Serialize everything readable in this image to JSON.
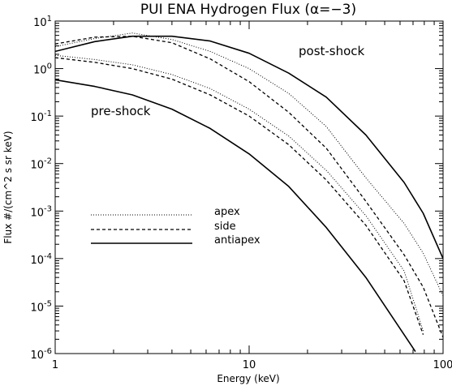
{
  "chart_data": {
    "type": "line",
    "title": "PUI ENA Hydrogen Flux (α=−3)",
    "xlabel": "Energy (keV)",
    "ylabel": "Flux #/(cm^2 s sr keV)",
    "xscale": "log",
    "yscale": "log",
    "xlim": [
      1,
      100
    ],
    "ylim": [
      1e-06,
      10
    ],
    "xticks": [
      {
        "value": 1,
        "label": "1"
      },
      {
        "value": 10,
        "label": "10"
      },
      {
        "value": 100,
        "label": "100"
      }
    ],
    "yticks": [
      {
        "value": 10,
        "base": "10",
        "exp": "1"
      },
      {
        "value": 1,
        "base": "10",
        "exp": "0"
      },
      {
        "value": 0.1,
        "base": "10",
        "exp": "-1"
      },
      {
        "value": 0.01,
        "base": "10",
        "exp": "-2"
      },
      {
        "value": 0.001,
        "base": "10",
        "exp": "-3"
      },
      {
        "value": 0.0001,
        "base": "10",
        "exp": "-4"
      },
      {
        "value": 1e-05,
        "base": "10",
        "exp": "-5"
      },
      {
        "value": 1e-06,
        "base": "10",
        "exp": "-6"
      }
    ],
    "legend": {
      "placement": "center-left",
      "entries": [
        {
          "name": "apex",
          "style": "dotted"
        },
        {
          "name": "side",
          "style": "dashed"
        },
        {
          "name": "antiapex",
          "style": "solid"
        }
      ]
    },
    "annotations": [
      "post-shock",
      "pre-shock"
    ],
    "series": [
      {
        "name": "apex",
        "group": "post-shock",
        "style": "dotted",
        "x": [
          1,
          1.6,
          2.5,
          4,
          6.3,
          10,
          16,
          25,
          40,
          63,
          79,
          100
        ],
        "y": [
          2.9,
          4.3,
          5.6,
          4.1,
          2.3,
          1.0,
          0.3,
          0.06,
          0.005,
          0.00055,
          0.00013,
          1.64e-05
        ]
      },
      {
        "name": "side",
        "group": "post-shock",
        "style": "dashed",
        "x": [
          1,
          1.6,
          2.5,
          4,
          6.3,
          10,
          16,
          25,
          40,
          63,
          79,
          100
        ],
        "y": [
          3.3,
          4.6,
          4.8,
          3.5,
          1.6,
          0.53,
          0.12,
          0.021,
          0.0016,
          0.00012,
          2.5e-05,
          2.2e-06
        ]
      },
      {
        "name": "antiapex",
        "group": "post-shock",
        "style": "solid",
        "x": [
          1,
          1.6,
          2.5,
          4,
          6.3,
          10,
          16,
          25,
          40,
          63,
          79,
          100
        ],
        "y": [
          2.3,
          3.7,
          4.8,
          4.8,
          3.8,
          2.1,
          0.8,
          0.25,
          0.04,
          0.004,
          0.0009,
          0.0001
        ]
      },
      {
        "name": "apex",
        "group": "pre-shock",
        "style": "dotted",
        "x": [
          1,
          1.6,
          2.5,
          4,
          6.3,
          10,
          16,
          25,
          40,
          63,
          79
        ],
        "y": [
          1.9,
          1.55,
          1.2,
          0.75,
          0.38,
          0.14,
          0.038,
          0.0072,
          0.0008,
          5.5e-05,
          3e-06
        ]
      },
      {
        "name": "side",
        "group": "pre-shock",
        "style": "dashed",
        "x": [
          1,
          1.6,
          2.5,
          4,
          6.3,
          10,
          16,
          25,
          40,
          63,
          79
        ],
        "y": [
          1.7,
          1.35,
          1.0,
          0.6,
          0.28,
          0.1,
          0.025,
          0.0045,
          0.0005,
          3.4e-05,
          2.5e-06
        ]
      },
      {
        "name": "antiapex",
        "group": "pre-shock",
        "style": "solid",
        "x": [
          1,
          1.6,
          2.5,
          4,
          6.3,
          10,
          16,
          25,
          40,
          63,
          72
        ],
        "y": [
          0.58,
          0.42,
          0.28,
          0.14,
          0.055,
          0.016,
          0.0033,
          0.00045,
          4e-05,
          2.5e-06,
          1.1e-06
        ]
      }
    ]
  }
}
